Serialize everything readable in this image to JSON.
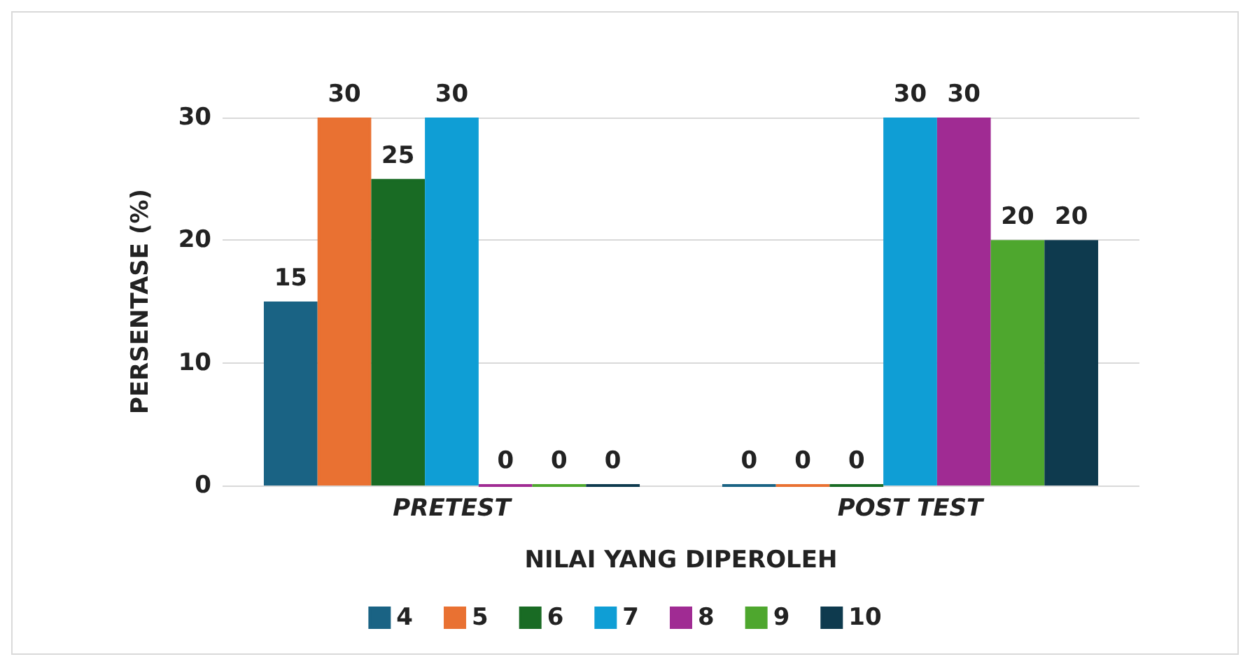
{
  "chart_data": {
    "type": "bar",
    "xlabel": "NILAI YANG DIPEROLEH",
    "ylabel": "PERSENTASE (%)",
    "categories": [
      "PRETEST",
      "POST TEST"
    ],
    "series": [
      {
        "name": "4",
        "color": "#1a6384",
        "values": [
          15,
          0
        ]
      },
      {
        "name": "5",
        "color": "#e97132",
        "values": [
          30,
          0
        ]
      },
      {
        "name": "6",
        "color": "#196b24",
        "values": [
          25,
          0
        ]
      },
      {
        "name": "7",
        "color": "#0f9ed5",
        "values": [
          30,
          30
        ]
      },
      {
        "name": "8",
        "color": "#a02b93",
        "values": [
          0,
          30
        ]
      },
      {
        "name": "9",
        "color": "#4ea72e",
        "values": [
          0,
          20
        ]
      },
      {
        "name": "10",
        "color": "#0e3a4e",
        "values": [
          0,
          20
        ]
      }
    ],
    "ylim": [
      0,
      30
    ],
    "yticks": [
      0,
      10,
      20,
      30
    ],
    "grid": "y",
    "legend": "bottom",
    "data_labels": true
  }
}
